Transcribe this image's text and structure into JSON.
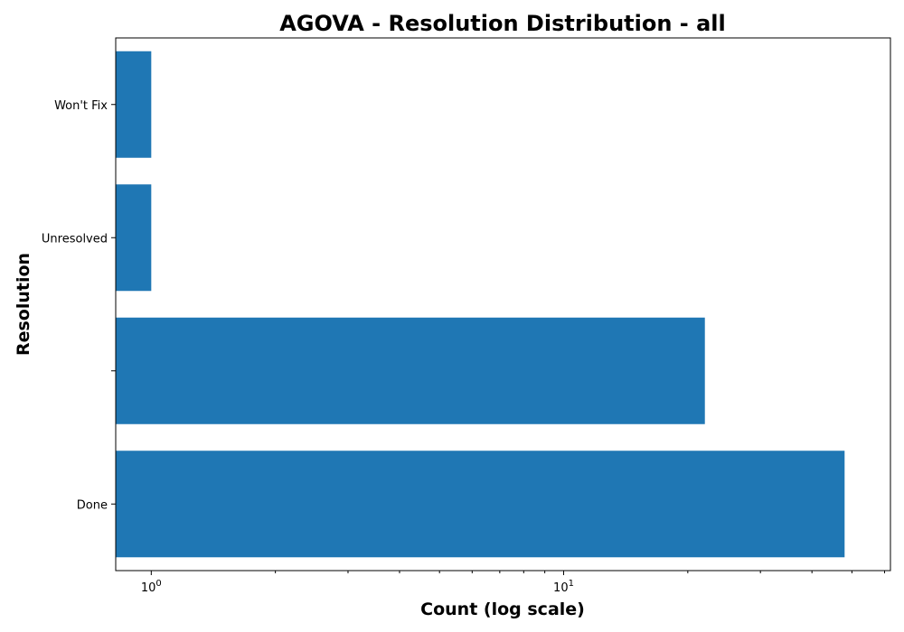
{
  "chart_data": {
    "type": "bar",
    "orientation": "horizontal",
    "title": "AGOVA - Resolution Distribution - all",
    "xlabel": "Count (log scale)",
    "ylabel": "Resolution",
    "x_scale": "log",
    "xlim": [
      0.82,
      62
    ],
    "categories": [
      "Done",
      "",
      "Unresolved",
      "Won't Fix"
    ],
    "values": [
      48,
      22,
      1,
      1
    ],
    "bar_color": "#1f77b4",
    "major_ticks": [
      {
        "base": "10",
        "exp": "0",
        "value": 1
      },
      {
        "base": "10",
        "exp": "1",
        "value": 10
      }
    ],
    "minor_ticks": [
      2,
      3,
      4,
      5,
      6,
      7,
      8,
      9,
      20,
      30,
      40,
      50,
      60
    ],
    "grid": false,
    "legend": "none"
  }
}
